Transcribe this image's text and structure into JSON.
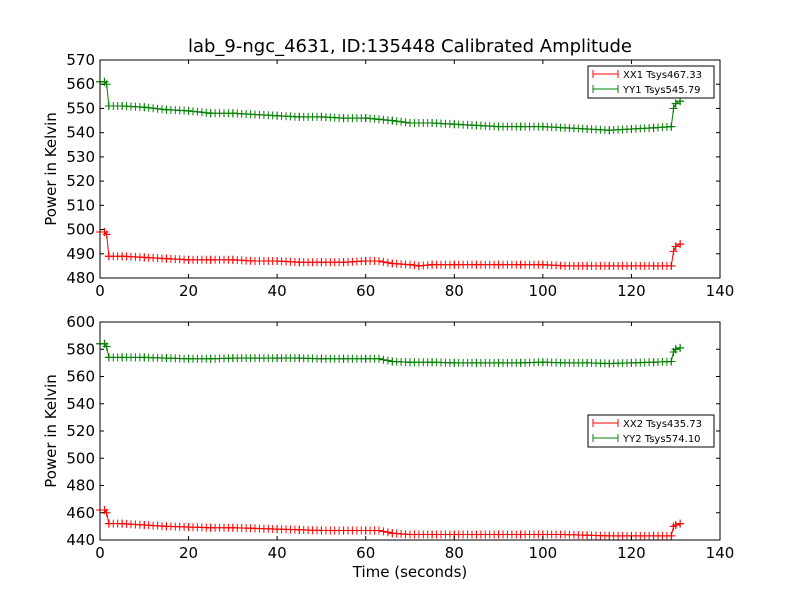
{
  "figure": {
    "title": "lab_9-ngc_4631, ID:135448 Calibrated Amplitude"
  },
  "colors": {
    "xx": "#ff0000",
    "yy": "#008000",
    "axes": "#000000",
    "background": "#ffffff"
  },
  "chart_data": [
    {
      "type": "line",
      "marker": "plus",
      "xlabel": "",
      "ylabel": "Power in Kelvin",
      "xlim": [
        0,
        140
      ],
      "ylim": [
        480,
        570
      ],
      "xticks": [
        0,
        20,
        40,
        60,
        80,
        100,
        120,
        140
      ],
      "yticks": [
        480,
        490,
        500,
        510,
        520,
        530,
        540,
        550,
        560,
        570
      ],
      "grid": false,
      "legend_position": "top-right",
      "series": [
        {
          "name": "XX1 Tsys467.33",
          "color": "#ff0000",
          "x": [
            0,
            1,
            1.5,
            2,
            5,
            10,
            15,
            20,
            25,
            30,
            35,
            40,
            45,
            50,
            55,
            60,
            63,
            66,
            70,
            72,
            75,
            80,
            85,
            90,
            95,
            100,
            105,
            110,
            115,
            120,
            125,
            129,
            129.5,
            130,
            131
          ],
          "y": [
            499,
            499,
            498,
            489,
            489,
            488.5,
            488,
            487.5,
            487.5,
            487.5,
            487,
            487,
            486.5,
            486.5,
            486.5,
            487,
            487,
            486,
            485.5,
            485,
            485.5,
            485.5,
            485.5,
            485.5,
            485.5,
            485.5,
            485,
            485,
            485,
            485,
            485,
            485,
            491,
            493,
            494
          ]
        },
        {
          "name": "YY1 Tsys545.79",
          "color": "#008000",
          "x": [
            0,
            1,
            1.5,
            2,
            5,
            10,
            15,
            20,
            25,
            30,
            35,
            40,
            45,
            50,
            55,
            60,
            63,
            66,
            70,
            75,
            80,
            85,
            90,
            95,
            100,
            105,
            110,
            115,
            120,
            125,
            129,
            129.5,
            130,
            131
          ],
          "y": [
            561,
            561,
            560,
            551,
            551,
            550.5,
            549.5,
            549,
            548,
            548,
            547.5,
            547,
            546.5,
            546.5,
            546,
            546,
            545.5,
            545,
            544,
            544,
            543.5,
            543,
            542.5,
            542.5,
            542.5,
            542,
            541.5,
            541,
            541.5,
            542,
            542.5,
            550,
            552,
            553
          ]
        }
      ]
    },
    {
      "type": "line",
      "marker": "plus",
      "xlabel": "Time (seconds)",
      "ylabel": "Power in Kelvin",
      "xlim": [
        0,
        140
      ],
      "ylim": [
        440,
        600
      ],
      "xticks": [
        0,
        20,
        40,
        60,
        80,
        100,
        120,
        140
      ],
      "yticks": [
        440,
        460,
        480,
        500,
        520,
        540,
        560,
        580,
        600
      ],
      "grid": false,
      "legend_position": "center-right",
      "series": [
        {
          "name": "XX2 Tsys435.73",
          "color": "#ff0000",
          "x": [
            0,
            1,
            1.5,
            2,
            5,
            10,
            15,
            20,
            25,
            30,
            35,
            40,
            45,
            50,
            55,
            60,
            63,
            66,
            70,
            75,
            80,
            85,
            90,
            95,
            100,
            105,
            110,
            115,
            120,
            125,
            129,
            129.5,
            130,
            131
          ],
          "y": [
            462,
            462,
            460,
            452,
            452,
            451,
            450,
            449.5,
            449,
            449,
            448.5,
            448,
            447.5,
            447,
            447,
            447,
            447,
            445,
            444,
            444,
            444,
            444,
            444,
            444,
            444,
            444,
            443.5,
            443,
            443,
            443,
            443,
            450,
            451,
            452
          ]
        },
        {
          "name": "YY2 Tsys574.10",
          "color": "#008000",
          "x": [
            0,
            1,
            1.5,
            2,
            5,
            10,
            15,
            20,
            25,
            30,
            35,
            40,
            45,
            50,
            55,
            60,
            63,
            66,
            70,
            75,
            80,
            85,
            90,
            95,
            100,
            105,
            110,
            115,
            120,
            125,
            129,
            129.5,
            130,
            131
          ],
          "y": [
            584,
            584,
            582,
            574,
            574,
            574,
            573.5,
            573,
            573,
            573.5,
            573.5,
            573.5,
            573.5,
            573,
            573,
            573,
            573,
            571,
            570.5,
            570.5,
            570,
            570,
            570,
            570,
            570.5,
            570,
            570,
            569.5,
            570,
            570.5,
            571,
            578,
            580,
            581
          ]
        }
      ]
    }
  ]
}
